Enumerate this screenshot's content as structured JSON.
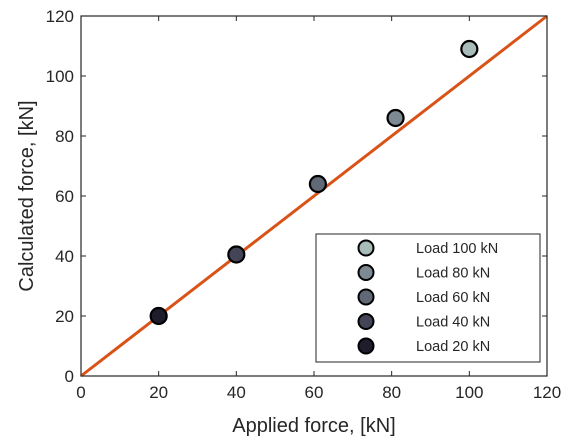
{
  "chart_data": {
    "type": "scatter",
    "title": "",
    "xlabel": "Applied force, [kN]",
    "ylabel": "Calculated force, [kN]",
    "xlim": [
      0,
      120
    ],
    "ylim": [
      0,
      120
    ],
    "xticks": [
      "0",
      "20",
      "40",
      "60",
      "80",
      "100",
      "120"
    ],
    "yticks": [
      "0",
      "20",
      "40",
      "60",
      "80",
      "100",
      "120"
    ],
    "grid": false,
    "legend_position": "bottom-right",
    "reference_line": {
      "x": [
        0,
        120
      ],
      "y": [
        0,
        120
      ],
      "color": "#d95319"
    },
    "series": [
      {
        "name": "Load 100 kN",
        "x": [
          100
        ],
        "y": [
          109
        ],
        "color": "#a8bcb9"
      },
      {
        "name": "Load 80 kN",
        "x": [
          81
        ],
        "y": [
          86
        ],
        "color": "#7d8a94"
      },
      {
        "name": "Load 60 kN",
        "x": [
          61
        ],
        "y": [
          64
        ],
        "color": "#616876"
      },
      {
        "name": "Load 40 kN",
        "x": [
          40
        ],
        "y": [
          40.5
        ],
        "color": "#444457"
      },
      {
        "name": "Load 20 kN",
        "x": [
          20
        ],
        "y": [
          20
        ],
        "color": "#1f1d2c"
      }
    ]
  }
}
